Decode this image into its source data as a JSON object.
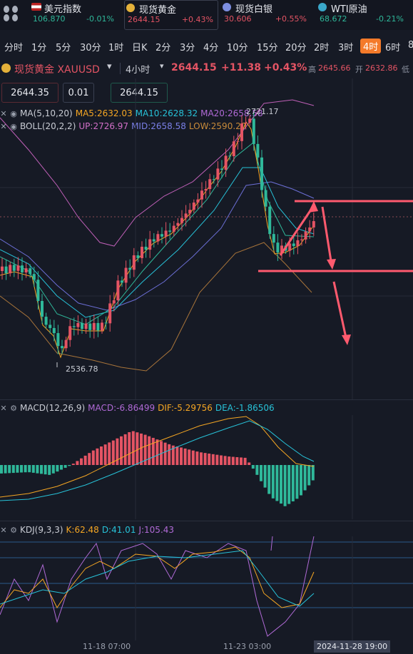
{
  "colors": {
    "up": "#e45464",
    "down": "#2fb89a",
    "accent": "#f47a2a",
    "annotation": "#ff5a6e"
  },
  "tickers": [
    {
      "name": "美元指数",
      "price": "106.870",
      "change": "-0.01%",
      "dir": "down",
      "flag": "us-flag-icon"
    },
    {
      "name": "现货黄金",
      "price": "2644.15",
      "change": "+0.43%",
      "dir": "up",
      "flag": "gold-icon"
    },
    {
      "name": "现货白银",
      "price": "30.606",
      "change": "+0.55%",
      "dir": "up",
      "flag": "silver-icon"
    },
    {
      "name": "WTI原油",
      "price": "68.672",
      "change": "-0.21%",
      "dir": "down",
      "flag": "oil-icon"
    }
  ],
  "timeframes": [
    "分时",
    "1分",
    "5分",
    "30分",
    "1时",
    "日K",
    "2分",
    "3分",
    "4分",
    "10分",
    "15分",
    "20分",
    "2时",
    "3时",
    "4时",
    "6时",
    "8"
  ],
  "active_timeframe_index": 14,
  "symbol": {
    "name": "现货黄金 XAUUSD",
    "period": "4小时",
    "price": "2644.15",
    "change": "+11.38",
    "pct": "+0.43%",
    "high_label": "高",
    "high": "2645.66",
    "open_label": "开",
    "open": "2632.86",
    "low_label": "低"
  },
  "order_boxes": {
    "sell": "2644.35",
    "qty": "0.01",
    "buy": "2644.15"
  },
  "ma": {
    "label": "MA(5,10,20)",
    "ma5": "MA5:2632.03",
    "ma10": "MA10:2628.32",
    "ma20": "MA20:2658.58"
  },
  "boll": {
    "label": "BOLL(20,2,2)",
    "up": "UP:2726.97",
    "mid": "MID:2658.58",
    "low": "LOW:2590.20"
  },
  "price_labels": {
    "high_mark": "2721.17",
    "low_mark": "2536.78"
  },
  "macd": {
    "label": "MACD(12,26,9)",
    "macd": "MACD:-6.86499",
    "dif": "DIF:-5.29756",
    "dea": "DEA:-1.86506"
  },
  "kdj": {
    "label": "KDJ(9,3,3)",
    "k": "K:62.48",
    "d": "D:41.01",
    "j": "J:105.43"
  },
  "time_axis": {
    "t1": "11-18 07:00",
    "t2": "11-23 03:00",
    "cursor": "2024-11-28 19:00"
  }
}
